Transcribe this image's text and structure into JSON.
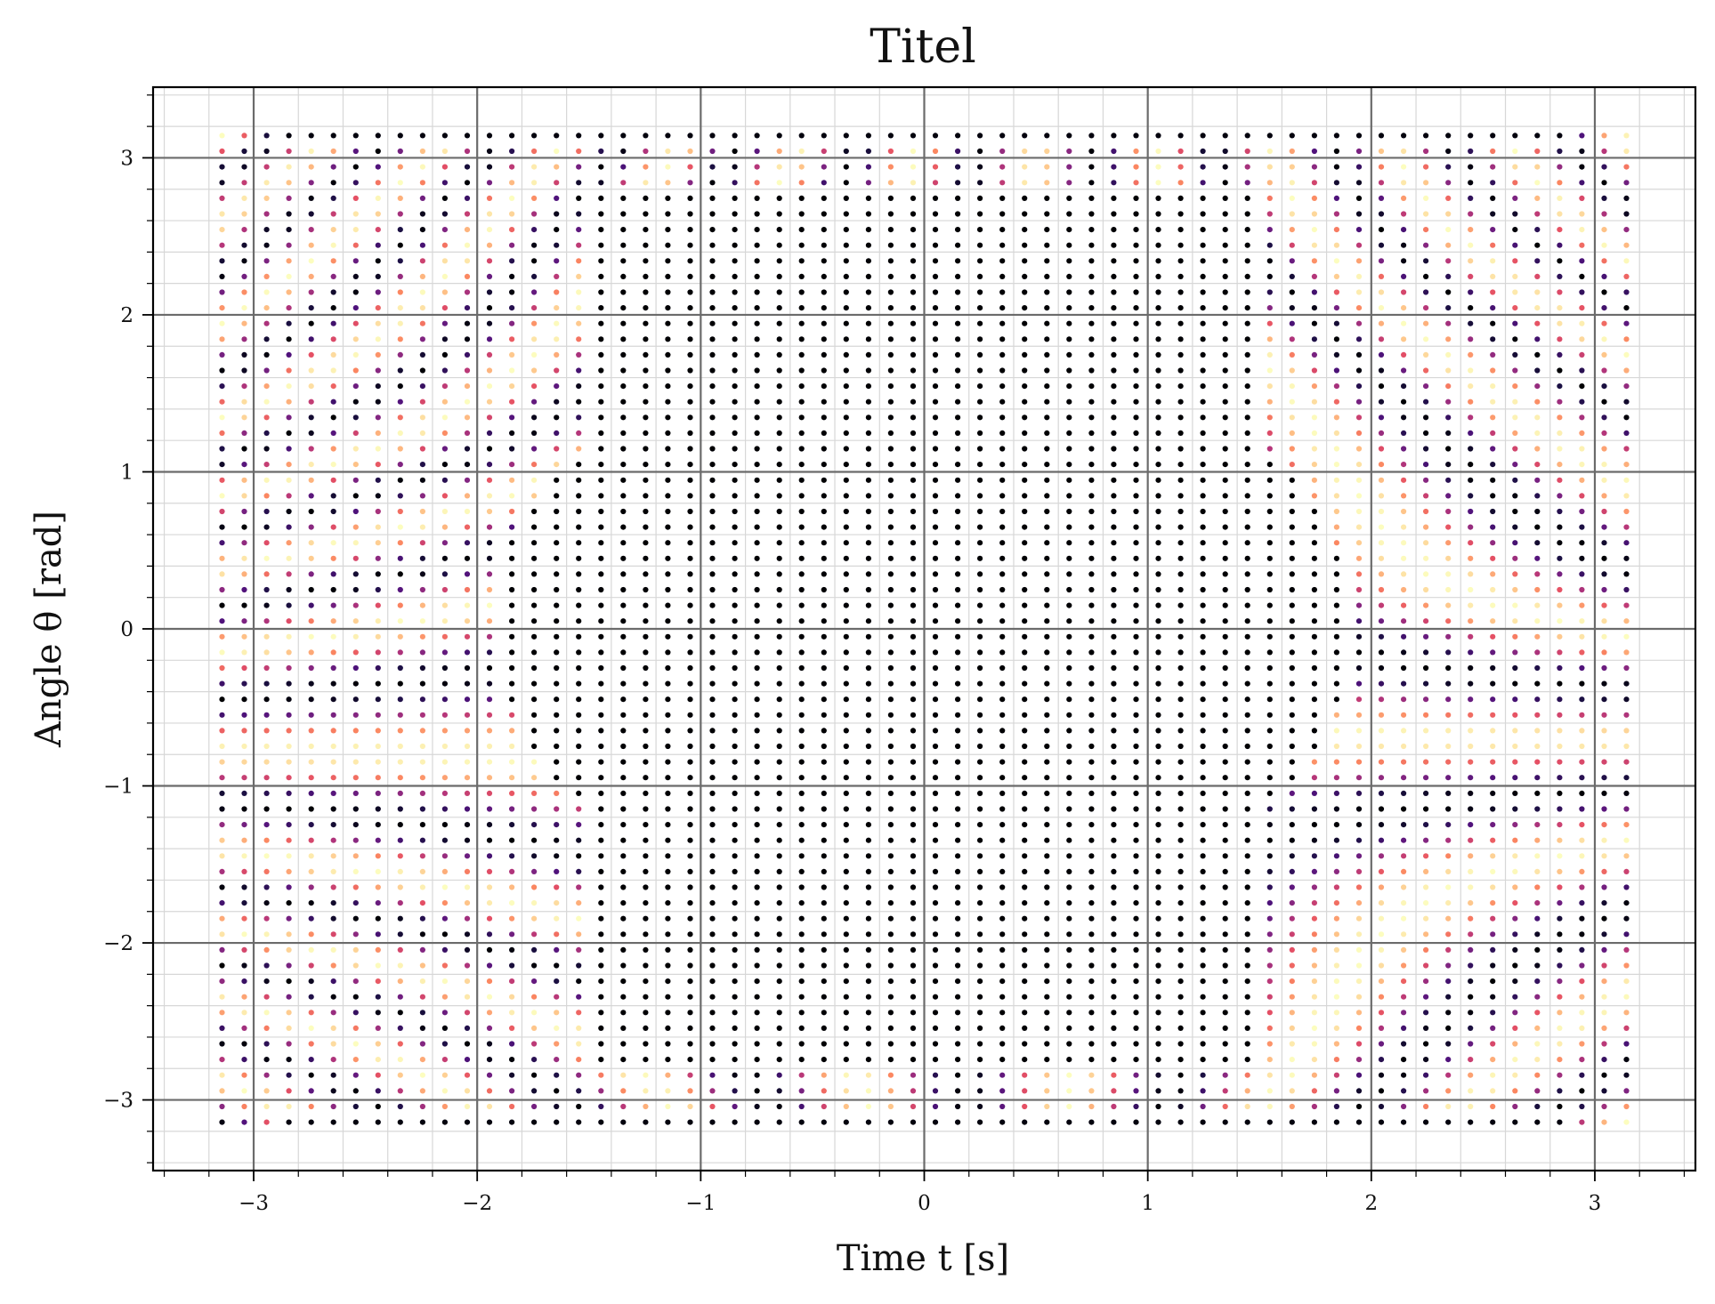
{
  "chart_data": {
    "type": "scatter",
    "title": "Titel",
    "xlabel": "Time t [s]",
    "ylabel": "Angle θ [rad]",
    "xlim": [
      -3.45,
      3.45
    ],
    "ylim": [
      -3.45,
      3.45
    ],
    "grid": {
      "major": true,
      "minor": true
    },
    "x_ticks": [
      -3,
      -2,
      -1,
      0,
      1,
      2,
      3
    ],
    "y_ticks": [
      -3,
      -2,
      -1,
      0,
      1,
      2,
      3
    ],
    "x_tick_labels": [
      "−3",
      "−2",
      "−1",
      "0",
      "1",
      "2",
      "3"
    ],
    "y_tick_labels": [
      "−3",
      "−2",
      "−1",
      "0",
      "1",
      "2",
      "3"
    ],
    "grid_domain": {
      "x": [
        -3.1416,
        3.1416
      ],
      "y": [
        -3.1416,
        3.1416
      ],
      "points_per_axis": 64
    },
    "colormap": "magma",
    "colormap_stops": [
      "#000004",
      "#1c1044",
      "#4f127b",
      "#812581",
      "#b5367a",
      "#e55064",
      "#fb8761",
      "#fec287",
      "#fcfdbf"
    ]
  }
}
